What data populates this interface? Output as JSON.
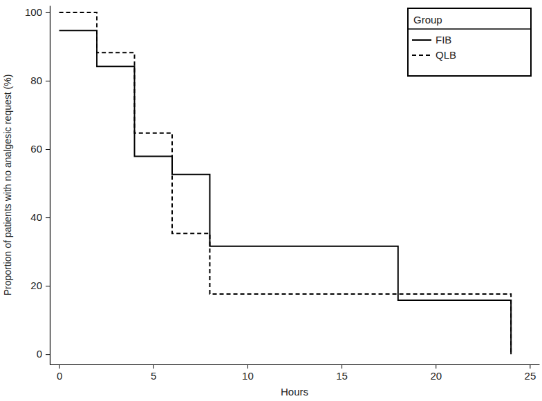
{
  "chart_data": {
    "type": "step",
    "x_label": "Hours",
    "y_label": "Proportion of patients with no analgesic request (%)",
    "legend_title": "Group",
    "legend": "upper right",
    "xlim": [
      -0.5,
      25.5
    ],
    "xticks": [
      0,
      5,
      10,
      15,
      20,
      25
    ],
    "ylim": [
      -3,
      102
    ],
    "yticks": [
      0,
      20,
      40,
      60,
      80,
      100
    ],
    "grid": false,
    "series": [
      {
        "name": "FIB",
        "color": "#000000",
        "line_style": "solid",
        "x": [
          0,
          2,
          4,
          6,
          8,
          18,
          24
        ],
        "values": [
          94.7,
          84.2,
          57.9,
          52.6,
          31.6,
          15.8,
          0
        ]
      },
      {
        "name": "QLB",
        "color": "#000000",
        "line_style": "dashed",
        "x": [
          0,
          2,
          4,
          6,
          8,
          24
        ],
        "values": [
          100,
          88.2,
          64.7,
          35.3,
          17.6,
          0
        ]
      }
    ]
  }
}
